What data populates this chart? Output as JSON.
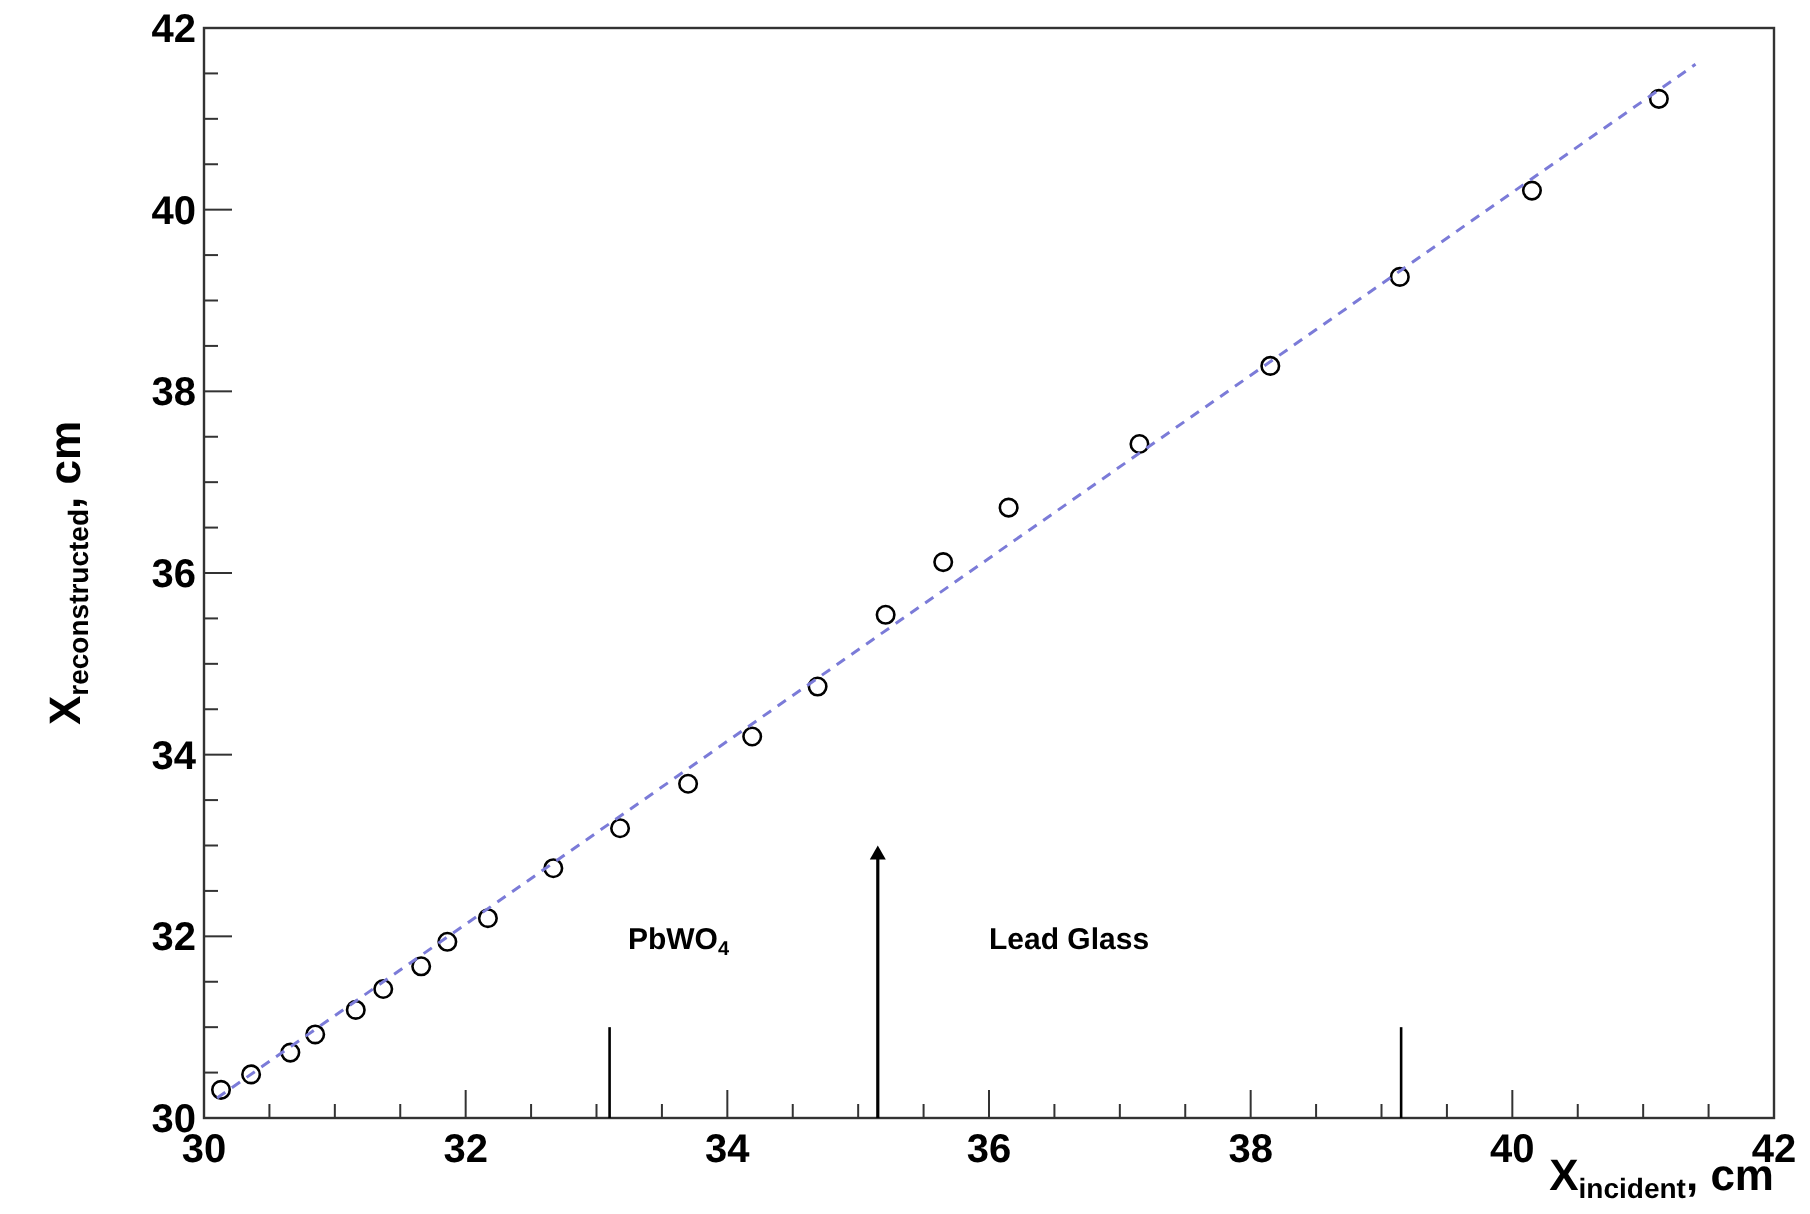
{
  "chart_data": {
    "type": "scatter",
    "xlabel": "X$_{incident}$, cm",
    "ylabel": "X$_{reconstructed}$, cm",
    "xlim": [
      30,
      42
    ],
    "ylim": [
      30,
      42
    ],
    "xticks": [
      30,
      {
        "value": 30.5,
        "label": null
      },
      {
        "value": 31,
        "label": null
      },
      {
        "value": 31.5,
        "label": null
      },
      32,
      {
        "value": 32.5,
        "label": null
      },
      {
        "value": 33,
        "label": null
      },
      {
        "value": 33.5,
        "label": null
      },
      34,
      {
        "value": 34.5,
        "label": null
      },
      {
        "value": 35,
        "label": null
      },
      {
        "value": 35.5,
        "label": null
      },
      36,
      {
        "value": 36.5,
        "label": null
      },
      {
        "value": 37,
        "label": null
      },
      {
        "value": 37.5,
        "label": null
      },
      38,
      {
        "value": 38.5,
        "label": null
      },
      {
        "value": 39,
        "label": null
      },
      {
        "value": 39.5,
        "label": null
      },
      40,
      {
        "value": 40.5,
        "label": null
      },
      {
        "value": 41,
        "label": null
      },
      {
        "value": 41.5,
        "label": null
      },
      42
    ],
    "yticks": [
      30,
      {
        "value": 30.5,
        "label": null
      },
      {
        "value": 31,
        "label": null
      },
      {
        "value": 31.5,
        "label": null
      },
      32,
      {
        "value": 32.5,
        "label": null
      },
      {
        "value": 33,
        "label": null
      },
      {
        "value": 33.5,
        "label": null
      },
      34,
      {
        "value": 34.5,
        "label": null
      },
      {
        "value": 35,
        "label": null
      },
      {
        "value": 35.5,
        "label": null
      },
      36,
      {
        "value": 36.5,
        "label": null
      },
      {
        "value": 37,
        "label": null
      },
      {
        "value": 37.5,
        "label": null
      },
      38,
      {
        "value": 38.5,
        "label": null
      },
      {
        "value": 39,
        "label": null
      },
      {
        "value": 39.5,
        "label": null
      },
      40,
      {
        "value": 40.5,
        "label": null
      },
      {
        "value": 41,
        "label": null
      },
      {
        "value": 41.5,
        "label": null
      },
      42
    ],
    "grid": false,
    "series": [
      {
        "marker": "circle",
        "color": "#000000",
        "x": [
          30.13,
          30.36,
          30.66,
          30.85,
          31.16,
          31.37,
          31.66,
          31.86,
          32.17,
          32.67,
          33.18,
          33.7,
          34.19,
          34.69,
          35.21,
          35.65,
          36.15,
          37.15,
          38.15,
          39.14,
          40.15,
          41.12
        ],
        "values": [
          30.31,
          30.48,
          30.72,
          30.92,
          31.19,
          31.42,
          31.67,
          31.94,
          32.2,
          32.75,
          33.19,
          33.68,
          34.2,
          34.75,
          35.54,
          36.12,
          36.72,
          37.42,
          38.28,
          39.26,
          40.21,
          41.22
        ]
      },
      {
        "type": "line",
        "color": "#7b7bd8",
        "line_style": "dashed",
        "x": [
          30.1,
          41.4
        ],
        "values": [
          30.22,
          41.6
        ]
      }
    ],
    "ref_lines": [
      {
        "axis": "x",
        "value": 33.1,
        "color": "#000000"
      },
      {
        "axis": "x",
        "value": 39.15,
        "color": "#000000"
      }
    ],
    "annotations": [
      "PbWO$_{4}$",
      "Lead Glass"
    ]
  }
}
